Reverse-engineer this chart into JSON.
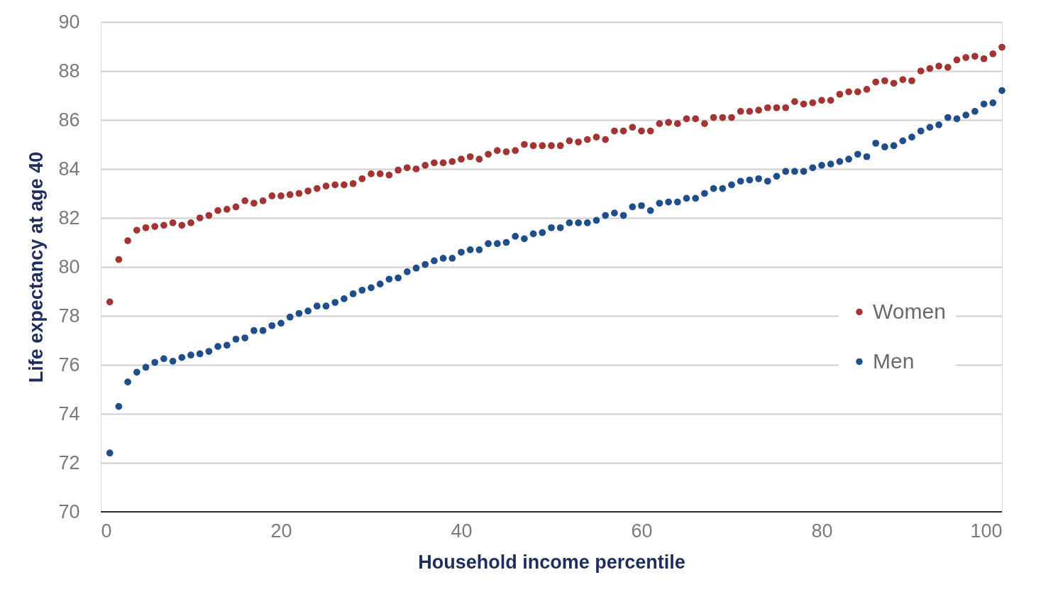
{
  "chart_data": {
    "type": "scatter",
    "xlabel": "Household  income percentile",
    "ylabel": "Life expectancy at age 40",
    "xlim": [
      0,
      100
    ],
    "xticks": [
      0,
      20,
      40,
      60,
      80,
      100
    ],
    "ylim": [
      70,
      90
    ],
    "yticks": [
      70,
      72,
      74,
      76,
      78,
      80,
      82,
      84,
      86,
      88,
      90
    ],
    "grid": "y",
    "legend": "right",
    "marker": "circle",
    "x": [
      1,
      2,
      3,
      4,
      5,
      6,
      7,
      8,
      9,
      10,
      11,
      12,
      13,
      14,
      15,
      16,
      17,
      18,
      19,
      20,
      21,
      22,
      23,
      24,
      25,
      26,
      27,
      28,
      29,
      30,
      31,
      32,
      33,
      34,
      35,
      36,
      37,
      38,
      39,
      40,
      41,
      42,
      43,
      44,
      45,
      46,
      47,
      48,
      49,
      50,
      51,
      52,
      53,
      54,
      55,
      56,
      57,
      58,
      59,
      60,
      61,
      62,
      63,
      64,
      65,
      66,
      67,
      68,
      69,
      70,
      71,
      72,
      73,
      74,
      75,
      76,
      77,
      78,
      79,
      80,
      81,
      82,
      83,
      84,
      85,
      86,
      87,
      88,
      89,
      90,
      91,
      92,
      93,
      94,
      95,
      96,
      97,
      98,
      99,
      100
    ],
    "series": [
      {
        "name": "Women",
        "color": "#a33434",
        "values": [
          78.57,
          80.3,
          81.07,
          81.5,
          81.6,
          81.65,
          81.7,
          81.8,
          81.7,
          81.8,
          82.0,
          82.1,
          82.3,
          82.35,
          82.45,
          82.7,
          82.6,
          82.7,
          82.9,
          82.9,
          82.95,
          83.0,
          83.1,
          83.2,
          83.3,
          83.35,
          83.35,
          83.4,
          83.6,
          83.8,
          83.8,
          83.75,
          83.95,
          84.05,
          84.0,
          84.15,
          84.25,
          84.25,
          84.3,
          84.4,
          84.5,
          84.4,
          84.6,
          84.75,
          84.7,
          84.75,
          85.0,
          84.95,
          84.95,
          84.95,
          84.95,
          85.15,
          85.1,
          85.2,
          85.3,
          85.2,
          85.55,
          85.55,
          85.7,
          85.55,
          85.55,
          85.85,
          85.9,
          85.85,
          86.05,
          86.05,
          85.85,
          86.1,
          86.1,
          86.1,
          86.35,
          86.35,
          86.4,
          86.5,
          86.5,
          86.5,
          86.75,
          86.65,
          86.7,
          86.8,
          86.8,
          87.05,
          87.15,
          87.15,
          87.25,
          87.55,
          87.6,
          87.5,
          87.65,
          87.6,
          88.0,
          88.1,
          88.2,
          88.15,
          88.45,
          88.55,
          88.6,
          88.5,
          88.7,
          88.97
        ]
      },
      {
        "name": "Men",
        "color": "#1f4e8a",
        "values": [
          72.4,
          74.3,
          75.3,
          75.7,
          75.9,
          76.1,
          76.25,
          76.15,
          76.3,
          76.4,
          76.45,
          76.55,
          76.75,
          76.8,
          77.05,
          77.1,
          77.4,
          77.4,
          77.6,
          77.7,
          77.95,
          78.1,
          78.2,
          78.4,
          78.4,
          78.55,
          78.7,
          78.9,
          79.05,
          79.15,
          79.3,
          79.5,
          79.55,
          79.8,
          79.95,
          80.1,
          80.25,
          80.35,
          80.35,
          80.6,
          80.7,
          80.7,
          80.95,
          80.95,
          81.0,
          81.25,
          81.15,
          81.35,
          81.4,
          81.6,
          81.6,
          81.8,
          81.8,
          81.8,
          81.9,
          82.1,
          82.2,
          82.1,
          82.45,
          82.5,
          82.3,
          82.6,
          82.65,
          82.65,
          82.8,
          82.8,
          83.0,
          83.2,
          83.2,
          83.35,
          83.5,
          83.55,
          83.6,
          83.5,
          83.7,
          83.9,
          83.9,
          83.9,
          84.05,
          84.15,
          84.2,
          84.3,
          84.4,
          84.6,
          84.5,
          85.05,
          84.9,
          84.95,
          85.15,
          85.3,
          85.55,
          85.7,
          85.8,
          86.1,
          86.05,
          86.2,
          86.35,
          86.65,
          86.7,
          87.2
        ]
      }
    ]
  }
}
